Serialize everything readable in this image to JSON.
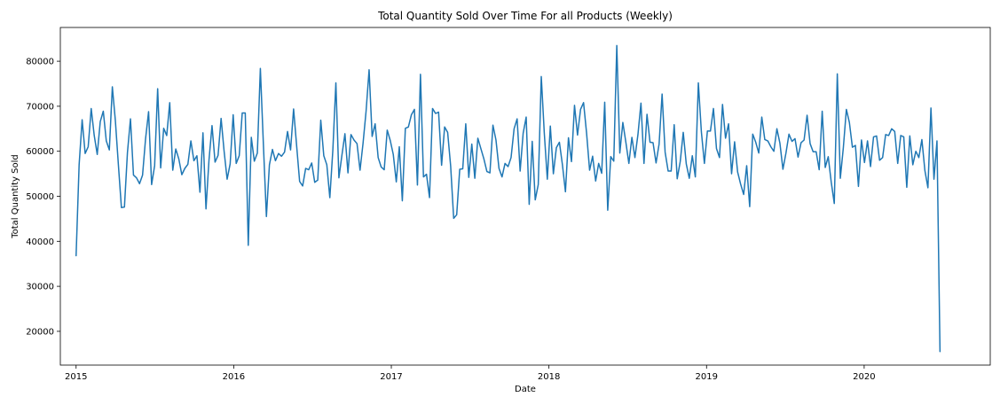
{
  "chart_data": {
    "type": "line",
    "title": "Total Quantity Sold Over Time For all Products (Weekly)",
    "xlabel": "Date",
    "ylabel": "Total Quantity Sold",
    "xlim": [
      2014.9,
      2020.8
    ],
    "ylim": [
      12500,
      87500
    ],
    "x_ticks": [
      {
        "value": 2015,
        "label": "2015"
      },
      {
        "value": 2016,
        "label": "2016"
      },
      {
        "value": 2017,
        "label": "2017"
      },
      {
        "value": 2018,
        "label": "2018"
      },
      {
        "value": 2019,
        "label": "2019"
      },
      {
        "value": 2020,
        "label": "2020"
      }
    ],
    "y_ticks": [
      {
        "value": 20000,
        "label": "20000"
      },
      {
        "value": 30000,
        "label": "30000"
      },
      {
        "value": 40000,
        "label": "40000"
      },
      {
        "value": 50000,
        "label": "50000"
      },
      {
        "value": 60000,
        "label": "60000"
      },
      {
        "value": 70000,
        "label": "70000"
      },
      {
        "value": 80000,
        "label": "80000"
      }
    ],
    "grid": false,
    "legend": "none",
    "line_color": "#1f77b4",
    "series": [
      {
        "x_start": 2015.0,
        "x_step_weeks": 1,
        "values": [
          36800,
          57000,
          67000,
          59500,
          61000,
          69500,
          63500,
          59300,
          66600,
          68900,
          62300,
          60300,
          74300,
          66800,
          57000,
          47500,
          47600,
          59700,
          67200,
          54700,
          54100,
          52800,
          54700,
          62800,
          68800,
          52600,
          56800,
          73900,
          56300,
          65100,
          63500,
          70800,
          55800,
          60500,
          58300,
          54800,
          56200,
          57100,
          62300,
          57900,
          59000,
          50900,
          64100,
          47200,
          58100,
          65700,
          57600,
          59100,
          67300,
          60000,
          53800,
          57200,
          68100,
          57300,
          59000,
          68500,
          68500,
          39100,
          63100,
          57800,
          59600,
          78400,
          61600,
          45500,
          57000,
          60400,
          57900,
          59500,
          58900,
          59800,
          64400,
          60300,
          69400,
          61300,
          53300,
          52300,
          56200,
          55900,
          57400,
          53100,
          53600,
          66900,
          59000,
          57000,
          49700,
          60300,
          75200,
          54100,
          59100,
          63900,
          55200,
          63700,
          62500,
          61700,
          55800,
          61800,
          68900,
          78100,
          63300,
          66100,
          58600,
          56500,
          55900,
          64700,
          62400,
          59300,
          53200,
          61000,
          49000,
          65100,
          65400,
          68100,
          69300,
          52500,
          77100,
          54300,
          54900,
          49700,
          69500,
          68400,
          68700,
          56900,
          65400,
          64200,
          56700,
          45100,
          45900,
          56000,
          56100,
          66100,
          54200,
          61600,
          54000,
          62900,
          60600,
          58300,
          55500,
          55200,
          65800,
          62500,
          56200,
          54300,
          57300,
          56600,
          58600,
          65000,
          67200,
          55600,
          64000,
          67600,
          48200,
          62200,
          49200,
          52600,
          76600,
          64000,
          53800,
          65600,
          55000,
          60800,
          62000,
          57000,
          51000,
          63000,
          57700,
          70200,
          63600,
          69300,
          70800,
          64000,
          55800,
          58900,
          53400,
          57300,
          55100,
          70900,
          46900,
          58800,
          57800,
          83500,
          59600,
          66400,
          62000,
          57300,
          63100,
          58600,
          63700,
          70700,
          57300,
          68200,
          62000,
          61900,
          57400,
          61600,
          72700,
          59800,
          55600,
          55600,
          65900,
          53900,
          57700,
          64200,
          57200,
          54000,
          59000,
          54300,
          75200,
          64300,
          57300,
          64500,
          64500,
          69500,
          60600,
          58600,
          70400,
          62900,
          66100,
          55000,
          62100,
          55400,
          52700,
          50400,
          56800,
          47700,
          63800,
          62000,
          59600,
          67600,
          62600,
          62300,
          61000,
          60000,
          65000,
          61800,
          56000,
          59600,
          63800,
          62200,
          62800,
          58700,
          61900,
          62500,
          68000,
          61700,
          59900,
          59900,
          55900,
          68900,
          56400,
          58800,
          53100,
          48400,
          77200,
          54000,
          60800,
          69300,
          66400,
          60900,
          61300,
          52200,
          62500,
          57500,
          62300,
          56600,
          63200,
          63400,
          58000,
          58600,
          63700,
          63500,
          65000,
          64400,
          57300,
          63500,
          63200,
          52000,
          63400,
          57000,
          60000,
          58600,
          62600,
          55700,
          51900,
          69600,
          53800,
          62300,
          15500
        ]
      }
    ]
  }
}
